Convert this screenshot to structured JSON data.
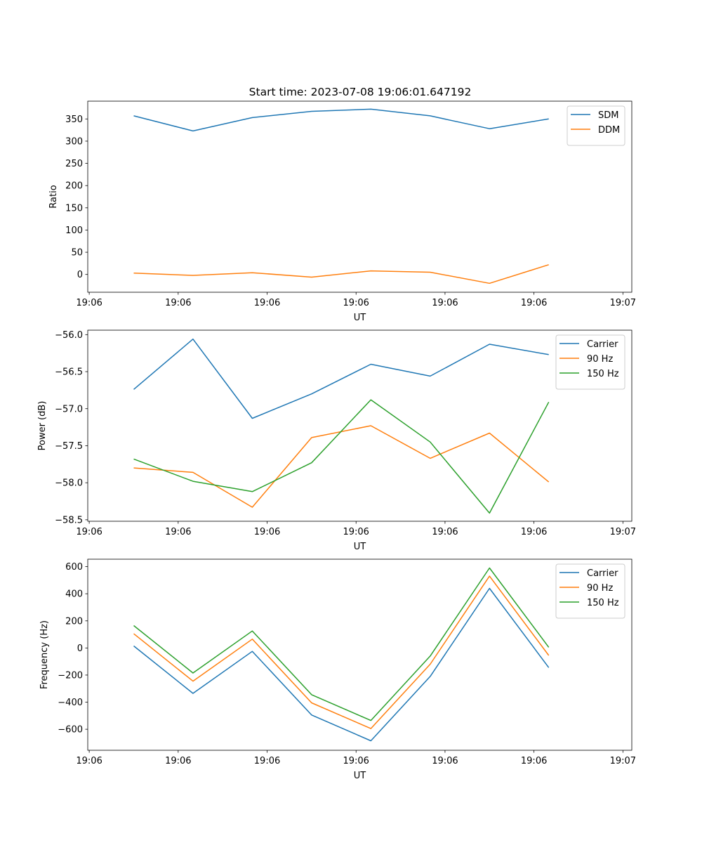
{
  "figure_title": "Start time: 2023-07-08 19:06:01.647192",
  "chart_data": [
    {
      "type": "line",
      "title": "Start time: 2023-07-08 19:06:01.647192",
      "xlabel": "UT",
      "ylabel": "Ratio",
      "xlim": [
        -0.775,
        8.4
      ],
      "ylim": [
        -40,
        390
      ],
      "x_ticks": [
        {
          "value": -0.75,
          "label": "19:06"
        },
        {
          "value": 0.75,
          "label": "19:06"
        },
        {
          "value": 2.25,
          "label": "19:06"
        },
        {
          "value": 3.75,
          "label": "19:06"
        },
        {
          "value": 5.25,
          "label": "19:06"
        },
        {
          "value": 6.75,
          "label": "19:06"
        },
        {
          "value": 8.25,
          "label": "19:07"
        }
      ],
      "y_ticks": [
        0,
        50,
        100,
        150,
        200,
        250,
        300,
        350
      ],
      "legend_position": "top-right",
      "x": [
        0,
        1,
        2,
        3,
        4,
        5,
        6,
        7
      ],
      "series": [
        {
          "name": "SDM",
          "color": "#1f77b4",
          "values": [
            357,
            323,
            353,
            367,
            372,
            357,
            328,
            350
          ]
        },
        {
          "name": "DDM",
          "color": "#ff7f0e",
          "values": [
            3,
            -2,
            4,
            -6,
            8,
            5,
            -20,
            22
          ]
        }
      ]
    },
    {
      "type": "line",
      "title": "",
      "xlabel": "UT",
      "ylabel": "Power (dB)",
      "xlim": [
        -0.775,
        8.4
      ],
      "ylim": [
        -58.52,
        -55.94
      ],
      "x_ticks": [
        {
          "value": -0.75,
          "label": "19:06"
        },
        {
          "value": 0.75,
          "label": "19:06"
        },
        {
          "value": 2.25,
          "label": "19:06"
        },
        {
          "value": 3.75,
          "label": "19:06"
        },
        {
          "value": 5.25,
          "label": "19:06"
        },
        {
          "value": 6.75,
          "label": "19:06"
        },
        {
          "value": 8.25,
          "label": "19:07"
        }
      ],
      "y_ticks": [
        -58.5,
        -58.0,
        -57.5,
        -57.0,
        -56.5,
        -56.0
      ],
      "y_tick_labels": [
        "−58.5",
        "−58.0",
        "−57.5",
        "−57.0",
        "−56.5",
        "−56.0"
      ],
      "legend_position": "top-right",
      "x": [
        0,
        1,
        2,
        3,
        4,
        5,
        6,
        7
      ],
      "series": [
        {
          "name": "Carrier",
          "color": "#1f77b4",
          "values": [
            -56.74,
            -56.06,
            -57.13,
            -56.8,
            -56.4,
            -56.56,
            -56.13,
            -56.27
          ]
        },
        {
          "name": "90 Hz",
          "color": "#ff7f0e",
          "values": [
            -57.8,
            -57.86,
            -58.33,
            -57.39,
            -57.23,
            -57.67,
            -57.33,
            -57.99
          ]
        },
        {
          "name": "150 Hz",
          "color": "#2ca02c",
          "values": [
            -57.68,
            -57.98,
            -58.12,
            -57.73,
            -56.88,
            -57.45,
            -58.41,
            -56.91
          ]
        }
      ]
    },
    {
      "type": "line",
      "title": "",
      "xlabel": "UT",
      "ylabel": "Frequency (Hz)",
      "xlim": [
        -0.775,
        8.4
      ],
      "ylim": [
        -755,
        655
      ],
      "x_ticks": [
        {
          "value": -0.75,
          "label": "19:06"
        },
        {
          "value": 0.75,
          "label": "19:06"
        },
        {
          "value": 2.25,
          "label": "19:06"
        },
        {
          "value": 3.75,
          "label": "19:06"
        },
        {
          "value": 5.25,
          "label": "19:06"
        },
        {
          "value": 6.75,
          "label": "19:06"
        },
        {
          "value": 8.25,
          "label": "19:07"
        }
      ],
      "y_ticks": [
        -600,
        -400,
        -200,
        0,
        200,
        400,
        600
      ],
      "y_tick_labels": [
        "−600",
        "−400",
        "−200",
        "0",
        "200",
        "400",
        "600"
      ],
      "legend_position": "top-right",
      "x": [
        0,
        1,
        2,
        3,
        4,
        5,
        6,
        7
      ],
      "series": [
        {
          "name": "Carrier",
          "color": "#1f77b4",
          "values": [
            15,
            -335,
            -25,
            -495,
            -685,
            -210,
            440,
            -145
          ]
        },
        {
          "name": "90 Hz",
          "color": "#ff7f0e",
          "values": [
            105,
            -245,
            65,
            -405,
            -595,
            -120,
            530,
            -55
          ]
        },
        {
          "name": "150 Hz",
          "color": "#2ca02c",
          "values": [
            165,
            -185,
            125,
            -345,
            -535,
            -60,
            590,
            5
          ]
        }
      ]
    }
  ]
}
